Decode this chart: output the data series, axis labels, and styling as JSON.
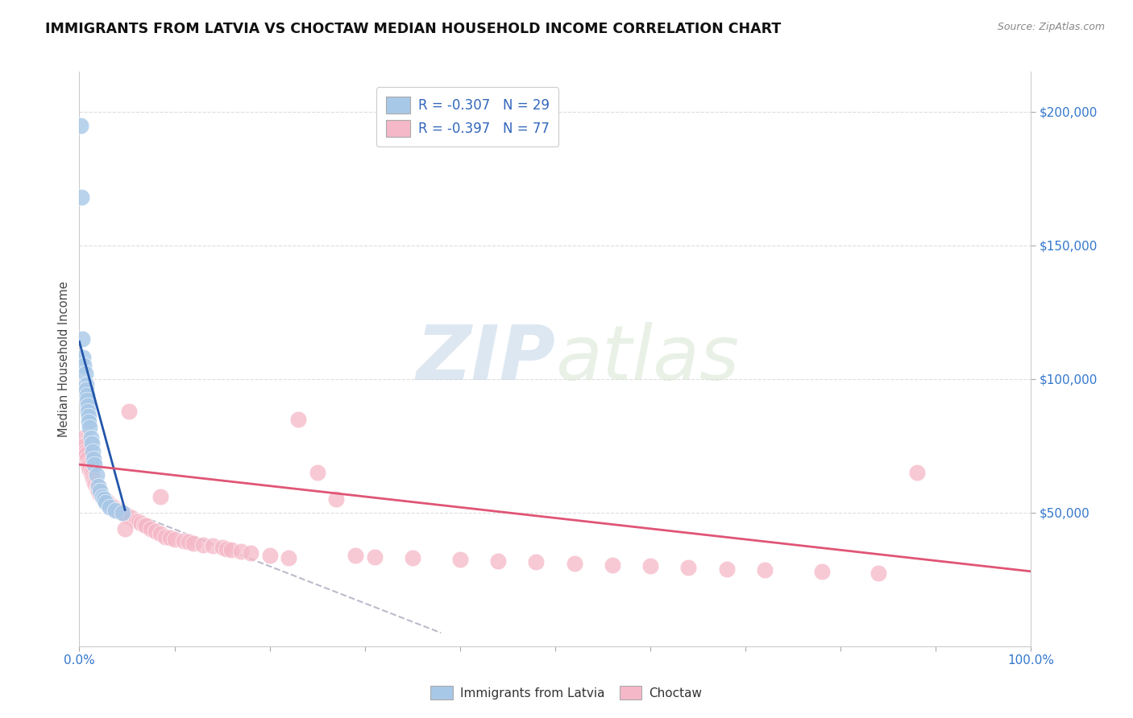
{
  "title": "IMMIGRANTS FROM LATVIA VS CHOCTAW MEDIAN HOUSEHOLD INCOME CORRELATION CHART",
  "source": "Source: ZipAtlas.com",
  "ylabel": "Median Household Income",
  "legend1_label": "R = -0.307   N = 29",
  "legend2_label": "R = -0.397   N = 77",
  "legend_bottom1": "Immigrants from Latvia",
  "legend_bottom2": "Choctaw",
  "watermark_zip": "ZIP",
  "watermark_atlas": "atlas",
  "blue_color": "#a8c8e8",
  "pink_color": "#f5b8c8",
  "blue_line_color": "#2255aa",
  "pink_line_color": "#e05575",
  "gray_line_color": "#bbbbcc",
  "blue_x": [
    0.001,
    0.002,
    0.003,
    0.004,
    0.005,
    0.006,
    0.007,
    0.007,
    0.008,
    0.008,
    0.009,
    0.009,
    0.01,
    0.01,
    0.011,
    0.012,
    0.013,
    0.014,
    0.015,
    0.016,
    0.018,
    0.02,
    0.022,
    0.024,
    0.026,
    0.028,
    0.032,
    0.038,
    0.045
  ],
  "blue_y": [
    195000,
    168000,
    115000,
    108000,
    105000,
    102000,
    98000,
    96000,
    94000,
    92000,
    90000,
    88000,
    86000,
    84000,
    82000,
    78000,
    76000,
    73000,
    70000,
    68000,
    64000,
    60000,
    58000,
    56000,
    55000,
    54000,
    52000,
    51000,
    50000
  ],
  "pink_x": [
    0.004,
    0.005,
    0.006,
    0.007,
    0.008,
    0.009,
    0.01,
    0.011,
    0.012,
    0.013,
    0.014,
    0.015,
    0.016,
    0.017,
    0.018,
    0.019,
    0.02,
    0.022,
    0.024,
    0.025,
    0.027,
    0.028,
    0.03,
    0.032,
    0.034,
    0.036,
    0.038,
    0.04,
    0.042,
    0.045,
    0.048,
    0.05,
    0.052,
    0.055,
    0.06,
    0.062,
    0.065,
    0.068,
    0.07,
    0.075,
    0.08,
    0.085,
    0.09,
    0.095,
    0.1,
    0.11,
    0.115,
    0.12,
    0.13,
    0.14,
    0.15,
    0.155,
    0.16,
    0.17,
    0.18,
    0.2,
    0.22,
    0.23,
    0.25,
    0.27,
    0.29,
    0.31,
    0.35,
    0.4,
    0.44,
    0.48,
    0.52,
    0.56,
    0.6,
    0.64,
    0.68,
    0.72,
    0.78,
    0.84,
    0.88,
    0.048,
    0.085
  ],
  "pink_y": [
    78000,
    75000,
    73000,
    72000,
    70000,
    68000,
    67000,
    66000,
    65000,
    64000,
    63000,
    62000,
    61000,
    60500,
    60000,
    59000,
    58000,
    57000,
    56000,
    55500,
    55000,
    54500,
    54000,
    53000,
    52500,
    52000,
    51500,
    51000,
    50500,
    50000,
    49500,
    49000,
    88000,
    48000,
    47000,
    46500,
    46000,
    45500,
    45000,
    44000,
    43000,
    42000,
    41000,
    40500,
    40000,
    39500,
    39000,
    38500,
    38000,
    37500,
    37000,
    36500,
    36000,
    35500,
    35000,
    34000,
    33000,
    85000,
    65000,
    55000,
    34000,
    33500,
    33000,
    32500,
    32000,
    31500,
    31000,
    30500,
    30000,
    29500,
    29000,
    28500,
    28000,
    27500,
    65000,
    44000,
    56000
  ],
  "blue_line_x0": 0.0,
  "blue_line_y0": 114000,
  "blue_line_x1": 0.048,
  "blue_line_y1": 51000,
  "gray_line_x0": 0.048,
  "gray_line_y0": 51000,
  "gray_line_x1": 0.38,
  "gray_line_y1": 5000,
  "pink_line_x0": 0.0,
  "pink_line_y0": 68000,
  "pink_line_x1": 1.0,
  "pink_line_y1": 28000,
  "xlim": [
    0,
    1.0
  ],
  "ylim": [
    0,
    215000
  ],
  "yticks": [
    50000,
    100000,
    150000,
    200000
  ],
  "ytick_labels": [
    "$50,000",
    "$100,000",
    "$150,000",
    "$200,000"
  ]
}
